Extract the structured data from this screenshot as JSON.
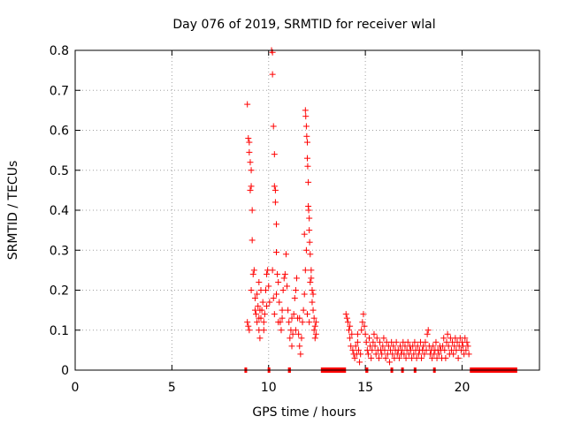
{
  "chart_data": {
    "type": "scatter",
    "title": "Day 076 of 2019, SRMTID for receiver wlal",
    "xlabel": "GPS time / hours",
    "ylabel": "SRMTID / TECUs",
    "xlim": [
      0,
      24
    ],
    "ylim": [
      0,
      0.8
    ],
    "grid": true,
    "marker": "+",
    "color": "#ff0000",
    "x_ticks": [
      0,
      5,
      10,
      15,
      20
    ],
    "y_ticks": [
      0,
      0.1,
      0.2,
      0.3,
      0.4,
      0.5,
      0.6,
      0.7,
      0.8
    ],
    "x_tick_labels": [
      "0",
      "5",
      "10",
      "15",
      "20"
    ],
    "y_tick_labels": [
      "0",
      "0.1",
      "0.2",
      "0.3",
      "0.4",
      "0.5",
      "0.6",
      "0.7",
      "0.8"
    ],
    "zero_value_segments": [
      [
        8.75,
        8.85
      ],
      [
        9.95,
        10.05
      ],
      [
        11.0,
        11.15
      ],
      [
        12.7,
        14.0
      ],
      [
        15.0,
        15.15
      ],
      [
        16.3,
        16.4
      ],
      [
        16.85,
        16.95
      ],
      [
        17.5,
        17.6
      ],
      [
        18.5,
        18.6
      ],
      [
        20.4,
        22.85
      ]
    ],
    "series": [
      {
        "name": "SRMTID",
        "points": [
          [
            8.9,
            0.665
          ],
          [
            8.95,
            0.58
          ],
          [
            9.0,
            0.57
          ],
          [
            9.0,
            0.545
          ],
          [
            9.05,
            0.52
          ],
          [
            9.1,
            0.5
          ],
          [
            9.1,
            0.46
          ],
          [
            9.05,
            0.45
          ],
          [
            9.15,
            0.4
          ],
          [
            9.15,
            0.325
          ],
          [
            8.9,
            0.12
          ],
          [
            8.95,
            0.11
          ],
          [
            9.0,
            0.1
          ],
          [
            9.1,
            0.2
          ],
          [
            9.2,
            0.24
          ],
          [
            9.25,
            0.25
          ],
          [
            9.3,
            0.18
          ],
          [
            9.3,
            0.15
          ],
          [
            9.35,
            0.14
          ],
          [
            9.4,
            0.12
          ],
          [
            9.45,
            0.16
          ],
          [
            9.5,
            0.22
          ],
          [
            9.5,
            0.1
          ],
          [
            9.55,
            0.08
          ],
          [
            9.6,
            0.13
          ],
          [
            9.65,
            0.15
          ],
          [
            9.7,
            0.17
          ],
          [
            9.75,
            0.12
          ],
          [
            9.8,
            0.14
          ],
          [
            9.85,
            0.2
          ],
          [
            9.9,
            0.24
          ],
          [
            9.95,
            0.25
          ],
          [
            10.0,
            0.21
          ],
          [
            10.05,
            0.17
          ],
          [
            9.5,
            0.13
          ],
          [
            9.6,
            0.2
          ],
          [
            9.75,
            0.1
          ],
          [
            9.9,
            0.16
          ],
          [
            9.4,
            0.19
          ],
          [
            9.55,
            0.15
          ],
          [
            10.15,
            0.8
          ],
          [
            10.2,
            0.795
          ],
          [
            10.2,
            0.74
          ],
          [
            10.25,
            0.61
          ],
          [
            10.3,
            0.54
          ],
          [
            10.3,
            0.46
          ],
          [
            10.35,
            0.45
          ],
          [
            10.35,
            0.42
          ],
          [
            10.4,
            0.365
          ],
          [
            10.4,
            0.295
          ],
          [
            10.2,
            0.25
          ],
          [
            10.25,
            0.18
          ],
          [
            10.3,
            0.14
          ],
          [
            10.4,
            0.19
          ],
          [
            10.45,
            0.24
          ],
          [
            10.5,
            0.22
          ],
          [
            10.55,
            0.17
          ],
          [
            10.6,
            0.12
          ],
          [
            10.65,
            0.1
          ],
          [
            10.7,
            0.15
          ],
          [
            10.75,
            0.2
          ],
          [
            10.8,
            0.23
          ],
          [
            10.85,
            0.24
          ],
          [
            10.9,
            0.29
          ],
          [
            10.95,
            0.21
          ],
          [
            11.0,
            0.15
          ],
          [
            11.05,
            0.12
          ],
          [
            11.1,
            0.08
          ],
          [
            11.15,
            0.1
          ],
          [
            11.2,
            0.06
          ],
          [
            11.25,
            0.09
          ],
          [
            11.3,
            0.14
          ],
          [
            11.35,
            0.18
          ],
          [
            11.4,
            0.2
          ],
          [
            11.45,
            0.23
          ],
          [
            11.5,
            0.13
          ],
          [
            11.55,
            0.09
          ],
          [
            11.6,
            0.06
          ],
          [
            11.65,
            0.04
          ],
          [
            11.7,
            0.08
          ],
          [
            11.75,
            0.12
          ],
          [
            11.8,
            0.15
          ],
          [
            11.85,
            0.19
          ],
          [
            11.9,
            0.25
          ],
          [
            11.95,
            0.3
          ],
          [
            10.5,
            0.12
          ],
          [
            10.7,
            0.13
          ],
          [
            11.2,
            0.13
          ],
          [
            11.4,
            0.1
          ],
          [
            11.6,
            0.13
          ],
          [
            11.9,
            0.65
          ],
          [
            11.92,
            0.635
          ],
          [
            11.95,
            0.61
          ],
          [
            11.97,
            0.585
          ],
          [
            12.0,
            0.57
          ],
          [
            12.0,
            0.53
          ],
          [
            12.02,
            0.51
          ],
          [
            12.05,
            0.47
          ],
          [
            12.05,
            0.41
          ],
          [
            12.07,
            0.4
          ],
          [
            12.1,
            0.38
          ],
          [
            12.1,
            0.35
          ],
          [
            12.12,
            0.32
          ],
          [
            12.15,
            0.29
          ],
          [
            12.2,
            0.25
          ],
          [
            12.2,
            0.23
          ],
          [
            12.25,
            0.2
          ],
          [
            12.3,
            0.19
          ],
          [
            12.3,
            0.15
          ],
          [
            12.35,
            0.13
          ],
          [
            12.35,
            0.1
          ],
          [
            12.4,
            0.08
          ],
          [
            11.85,
            0.34
          ],
          [
            12.15,
            0.22
          ],
          [
            12.25,
            0.17
          ],
          [
            12.4,
            0.11
          ],
          [
            12.45,
            0.12
          ],
          [
            12.45,
            0.09
          ],
          [
            12.0,
            0.14
          ],
          [
            12.1,
            0.12
          ],
          [
            14.0,
            0.14
          ],
          [
            14.05,
            0.13
          ],
          [
            14.1,
            0.12
          ],
          [
            14.15,
            0.1
          ],
          [
            14.2,
            0.08
          ],
          [
            14.25,
            0.06
          ],
          [
            14.3,
            0.09
          ],
          [
            14.35,
            0.05
          ],
          [
            14.4,
            0.04
          ],
          [
            14.45,
            0.03
          ],
          [
            14.5,
            0.06
          ],
          [
            14.55,
            0.04
          ],
          [
            14.6,
            0.07
          ],
          [
            14.65,
            0.05
          ],
          [
            14.7,
            0.02
          ],
          [
            14.75,
            0.04
          ],
          [
            14.8,
            0.1
          ],
          [
            14.85,
            0.12
          ],
          [
            14.9,
            0.14
          ],
          [
            14.95,
            0.11
          ],
          [
            15.0,
            0.09
          ],
          [
            15.05,
            0.07
          ],
          [
            15.1,
            0.05
          ],
          [
            15.15,
            0.04
          ],
          [
            15.2,
            0.08
          ],
          [
            15.25,
            0.06
          ],
          [
            15.3,
            0.03
          ],
          [
            15.35,
            0.05
          ],
          [
            15.4,
            0.07
          ],
          [
            15.45,
            0.09
          ],
          [
            15.5,
            0.06
          ],
          [
            15.55,
            0.04
          ],
          [
            15.6,
            0.08
          ],
          [
            15.65,
            0.05
          ],
          [
            15.7,
            0.03
          ],
          [
            15.75,
            0.07
          ],
          [
            15.8,
            0.05
          ],
          [
            15.85,
            0.04
          ],
          [
            15.9,
            0.06
          ],
          [
            15.95,
            0.08
          ],
          [
            16.0,
            0.05
          ],
          [
            16.05,
            0.03
          ],
          [
            16.1,
            0.07
          ],
          [
            16.15,
            0.04
          ],
          [
            16.2,
            0.06
          ],
          [
            16.25,
            0.02
          ],
          [
            16.3,
            0.05
          ],
          [
            16.35,
            0.07
          ],
          [
            16.4,
            0.04
          ],
          [
            16.45,
            0.06
          ],
          [
            16.5,
            0.03
          ],
          [
            16.55,
            0.05
          ],
          [
            16.6,
            0.07
          ],
          [
            16.65,
            0.04
          ],
          [
            16.7,
            0.05
          ],
          [
            16.75,
            0.03
          ],
          [
            16.8,
            0.06
          ],
          [
            16.85,
            0.04
          ],
          [
            16.9,
            0.05
          ],
          [
            16.95,
            0.07
          ],
          [
            17.0,
            0.04
          ],
          [
            17.05,
            0.06
          ],
          [
            17.1,
            0.03
          ],
          [
            17.15,
            0.05
          ],
          [
            17.2,
            0.07
          ],
          [
            17.25,
            0.04
          ],
          [
            17.3,
            0.06
          ],
          [
            17.35,
            0.05
          ],
          [
            17.4,
            0.03
          ],
          [
            17.45,
            0.06
          ],
          [
            17.5,
            0.04
          ],
          [
            17.55,
            0.07
          ],
          [
            17.6,
            0.05
          ],
          [
            17.65,
            0.03
          ],
          [
            17.7,
            0.06
          ],
          [
            17.75,
            0.04
          ],
          [
            17.8,
            0.05
          ],
          [
            17.85,
            0.07
          ],
          [
            17.9,
            0.03
          ],
          [
            17.95,
            0.05
          ],
          [
            18.0,
            0.06
          ],
          [
            18.05,
            0.04
          ],
          [
            18.1,
            0.07
          ],
          [
            18.15,
            0.05
          ],
          [
            18.2,
            0.09
          ],
          [
            18.25,
            0.1
          ],
          [
            18.3,
            0.06
          ],
          [
            18.35,
            0.04
          ],
          [
            18.4,
            0.05
          ],
          [
            18.45,
            0.03
          ],
          [
            18.5,
            0.06
          ],
          [
            18.55,
            0.04
          ],
          [
            18.6,
            0.05
          ],
          [
            18.65,
            0.07
          ],
          [
            18.7,
            0.03
          ],
          [
            18.75,
            0.05
          ],
          [
            18.8,
            0.04
          ],
          [
            18.85,
            0.06
          ],
          [
            18.9,
            0.05
          ],
          [
            18.95,
            0.03
          ],
          [
            19.0,
            0.06
          ],
          [
            19.05,
            0.08
          ],
          [
            19.1,
            0.05
          ],
          [
            19.15,
            0.03
          ],
          [
            19.2,
            0.07
          ],
          [
            19.25,
            0.09
          ],
          [
            19.3,
            0.06
          ],
          [
            19.35,
            0.04
          ],
          [
            19.4,
            0.08
          ],
          [
            19.45,
            0.05
          ],
          [
            19.5,
            0.07
          ],
          [
            19.55,
            0.04
          ],
          [
            19.6,
            0.06
          ],
          [
            19.65,
            0.08
          ],
          [
            19.7,
            0.05
          ],
          [
            19.75,
            0.07
          ],
          [
            19.8,
            0.03
          ],
          [
            19.85,
            0.06
          ],
          [
            19.9,
            0.08
          ],
          [
            19.95,
            0.05
          ],
          [
            20.0,
            0.07
          ],
          [
            20.05,
            0.06
          ],
          [
            20.1,
            0.04
          ],
          [
            20.15,
            0.08
          ],
          [
            20.2,
            0.05
          ],
          [
            20.25,
            0.07
          ],
          [
            20.3,
            0.06
          ],
          [
            20.35,
            0.04
          ],
          [
            14.2,
            0.11
          ],
          [
            14.6,
            0.09
          ]
        ]
      }
    ]
  }
}
